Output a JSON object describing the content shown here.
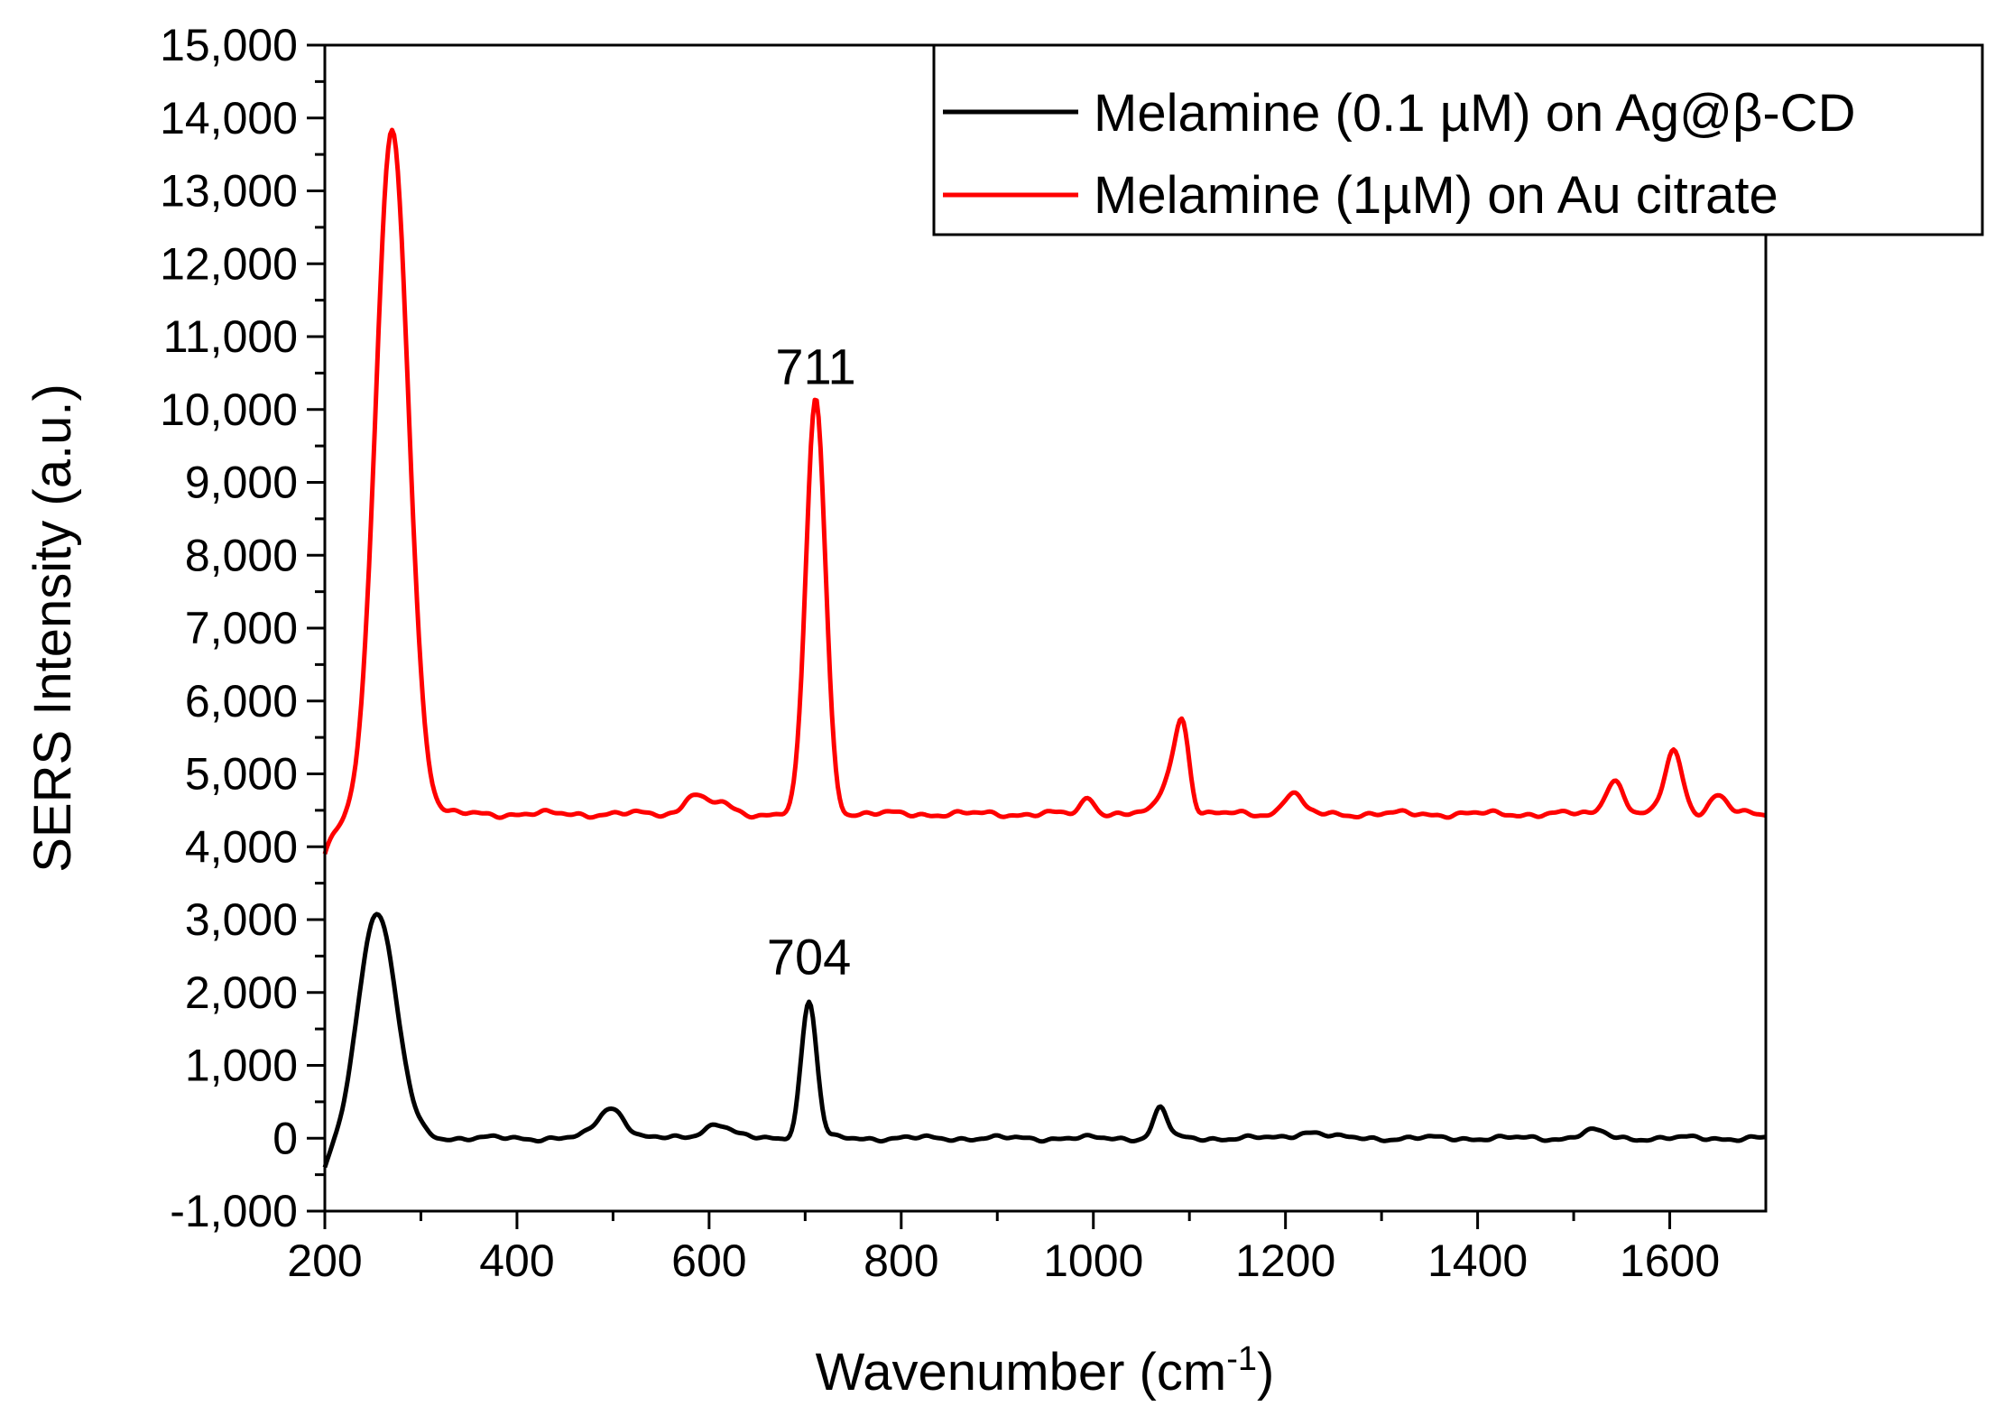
{
  "chart_data": {
    "type": "line",
    "title": "",
    "xlabel": "Wavenumber (cm",
    "xlabel_sup": "-1",
    "xlabel_close": ")",
    "ylabel": "SERS Intensity (a.u.)",
    "xlim": [
      200,
      1700
    ],
    "ylim": [
      -1000,
      15000
    ],
    "grid": false,
    "legend_position": "top-right",
    "x_ticks": [
      200,
      400,
      600,
      800,
      1000,
      1200,
      1400,
      1600
    ],
    "x_tick_labels": [
      "200",
      "400",
      "600",
      "800",
      "1000",
      "1200",
      "1400",
      "1600"
    ],
    "y_ticks": [
      -1000,
      0,
      1000,
      2000,
      3000,
      4000,
      5000,
      6000,
      7000,
      8000,
      9000,
      10000,
      11000,
      12000,
      13000,
      14000,
      15000
    ],
    "y_tick_labels": [
      "-1,000",
      "0",
      "1,000",
      "2,000",
      "3,000",
      "4,000",
      "5,000",
      "6,000",
      "7,000",
      "8,000",
      "9,000",
      "10,000",
      "11,000",
      "12,000",
      "13,000",
      "14,000",
      "15,000"
    ],
    "series": [
      {
        "name": "Melamine (0.1 µM) on Ag@β-CD",
        "color": "#000000",
        "baseline": 0,
        "start_value": -400,
        "wiggle": 45,
        "peaks": [
          {
            "x": 254,
            "height": 3150,
            "width": 20
          },
          {
            "x": 498,
            "height": 420,
            "width": 14
          },
          {
            "x": 608,
            "height": 200,
            "width": 14
          },
          {
            "x": 704,
            "height": 1880,
            "width": 8
          },
          {
            "x": 1070,
            "height": 420,
            "width": 7
          },
          {
            "x": 1225,
            "height": 90,
            "width": 15
          },
          {
            "x": 1520,
            "height": 100,
            "width": 12
          }
        ]
      },
      {
        "name": "Melamine (1µM) on Au citrate",
        "color": "#ff0000",
        "baseline": 4450,
        "start_value": 3900,
        "wiggle": 55,
        "peaks": [
          {
            "x": 270,
            "height": 9400,
            "width": 17
          },
          {
            "x": 584,
            "height": 280,
            "width": 10
          },
          {
            "x": 612,
            "height": 150,
            "width": 10
          },
          {
            "x": 711,
            "height": 5700,
            "width": 10
          },
          {
            "x": 995,
            "height": 230,
            "width": 7
          },
          {
            "x": 1080,
            "height": 500,
            "width": 10
          },
          {
            "x": 1093,
            "height": 1100,
            "width": 7
          },
          {
            "x": 1207,
            "height": 300,
            "width": 9
          },
          {
            "x": 1542,
            "height": 480,
            "width": 9
          },
          {
            "x": 1604,
            "height": 880,
            "width": 9
          },
          {
            "x": 1650,
            "height": 250,
            "width": 9
          }
        ]
      }
    ],
    "annotations": [
      {
        "text": "711",
        "x": 711,
        "y": 10350
      },
      {
        "text": "704",
        "x": 704,
        "y": 2250
      }
    ]
  }
}
